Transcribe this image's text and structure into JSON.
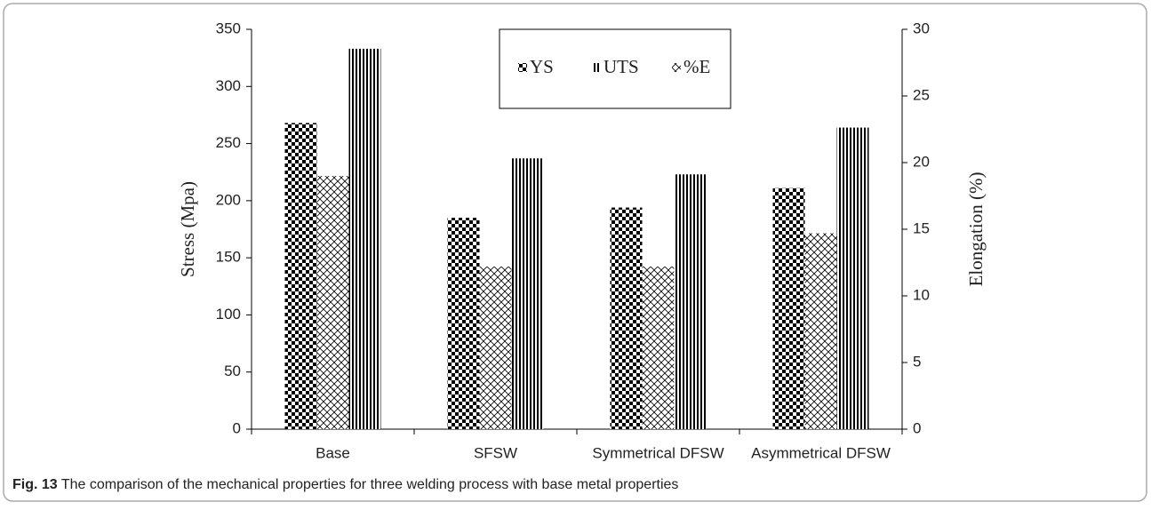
{
  "chart_data": {
    "type": "bar",
    "categories": [
      "Base",
      "SFSW",
      "Symmetrical DFSW",
      "Asymmetrical DFSW"
    ],
    "series": [
      {
        "name": "YS",
        "color": "#000000",
        "pattern": "checker",
        "values": [
          268,
          185,
          194,
          211
        ]
      },
      {
        "name": "%E",
        "color": "#000000",
        "pattern": "crosshatch",
        "axis": "y2",
        "values": [
          19,
          12.2,
          12.2,
          14.7
        ]
      },
      {
        "name": "UTS",
        "color": "#000000",
        "pattern": "vertical",
        "values": [
          333,
          237,
          223,
          264
        ]
      }
    ],
    "legend_order": [
      0,
      2,
      1
    ],
    "ylabel": "Stress (Mpa)",
    "y2label": "Elongation (%)",
    "ylim": [
      0,
      350
    ],
    "yticks": [
      0,
      50,
      100,
      150,
      200,
      250,
      300,
      350
    ],
    "y2lim": [
      0,
      30
    ],
    "y2ticks": [
      0,
      5,
      10,
      15,
      20,
      25,
      30
    ],
    "legend_position": "top"
  },
  "caption": {
    "label": "Fig. 13",
    "text": "The comparison of the mechanical properties for three welding process with base metal properties"
  }
}
